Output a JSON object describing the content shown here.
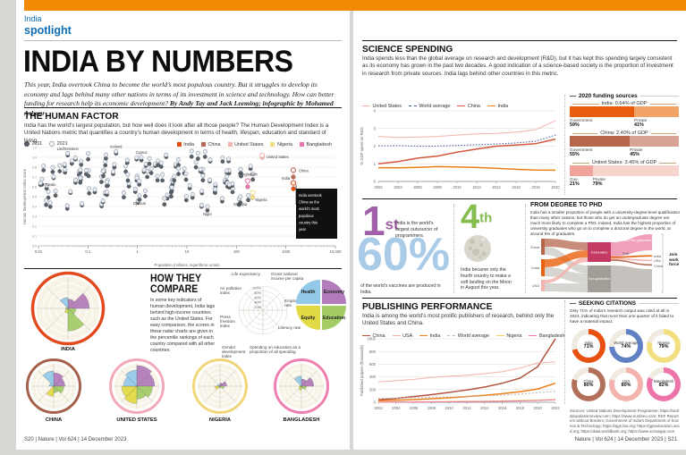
{
  "page": {
    "band_color": "#f18a00",
    "kicker": "India",
    "section_tab": "spotlight",
    "footer_left": "S20 | Nature | Vol 624 | 14 December 2023",
    "footer_right": "Nature | Vol 624 | 14 December 2023 | S21"
  },
  "headline": {
    "title": "INDIA BY NUMBERS",
    "standfirst_text": "This year, India overtook China to become the world’s most populous country. But it struggles to develop its economy and lags behind many other nations in terms of its investment in science and technology. How can better funding for research help its economic development?",
    "byline": "By Andy Tay and Jack Leeming; infographic by Mohamed Ashour"
  },
  "human_factor": {
    "title": "THE HUMAN FACTOR",
    "description": "India has the world’s largest population, but how well does it look after all those people? The Human Development Index is a United Nations metric that quantifies a country’s human development in terms of health, lifespan, education and standard of living.",
    "annotation": "India overtook China as the world’s most populous country this year",
    "year_legend": [
      {
        "label": "2011",
        "style": "filled"
      },
      {
        "label": "2021",
        "style": "open"
      }
    ],
    "country_legend": [
      {
        "label": "India",
        "color": "#e8500f"
      },
      {
        "label": "China",
        "color": "#b96a52"
      },
      {
        "label": "United States",
        "color": "#f3b3ac"
      },
      {
        "label": "Nigeria",
        "color": "#f2df7f"
      },
      {
        "label": "Bangladesh",
        "color": "#ec74ab"
      }
    ],
    "chart_data": {
      "type": "scatter",
      "xlabel": "Population (millions, logarithmic scale)",
      "ylabel": "Human Development Index score",
      "x_ticks": [
        "0.01",
        "0.1",
        "1",
        "10",
        "100",
        "1000",
        "10,000"
      ],
      "ylim": [
        0,
        1
      ],
      "countries": [
        {
          "name": "United States",
          "color": "#f3b3ac",
          "pop": 332,
          "hdi_2011": 0.9,
          "hdi_2021": 0.92,
          "highlight": true
        },
        {
          "name": "China",
          "color": "#b96a52",
          "pop": 1412,
          "hdi_2011": 0.7,
          "hdi_2021": 0.77,
          "highlight": true
        },
        {
          "name": "India",
          "color": "#e8500f",
          "pop": 1417,
          "hdi_2011": 0.58,
          "hdi_2021": 0.64,
          "highlight": true
        },
        {
          "name": "Bangladesh",
          "color": "#ec74ab",
          "pop": 169,
          "hdi_2011": 0.6,
          "hdi_2021": 0.66,
          "highlight": true
        },
        {
          "name": "Nigeria",
          "color": "#f2df7f",
          "pop": 213,
          "hdi_2011": 0.49,
          "hdi_2021": 0.54,
          "highlight": true
        },
        {
          "name": "Liechtenstein",
          "pop": 0.039,
          "hdi_2011": 0.92,
          "hdi_2021": 0.94
        },
        {
          "name": "Iceland",
          "pop": 0.37,
          "hdi_2011": 0.94,
          "hdi_2021": 0.96
        },
        {
          "name": "Cyprus",
          "pop": 1.2,
          "hdi_2011": 0.87,
          "hdi_2021": 0.9
        },
        {
          "name": "Tuvalu",
          "pop": 0.011,
          "hdi_2011": 0.62,
          "hdi_2021": 0.64
        },
        {
          "name": "Djibouti",
          "pop": 1.1,
          "hdi_2011": 0.47,
          "hdi_2021": 0.51
        },
        {
          "name": "Niger",
          "pop": 26,
          "hdi_2011": 0.36,
          "hdi_2021": 0.4
        },
        {
          "name": "Ethiopia",
          "pop": 120,
          "hdi_2011": 0.44,
          "hdi_2021": 0.5
        }
      ],
      "background_points_note": "approx. 180 other countries, unlabelled grey pairs"
    }
  },
  "how_they_compare": {
    "title_line1": "HOW THEY",
    "title_line2": "COMPARE",
    "description": "In some key indicators of human development, India lags behind high-income countries such as the United States. For easy comparison, the scores in these radar charts are given in the percentile rankings of each country compared with all other countries.",
    "axes": [
      "Gross national income per capita",
      "Employment rate",
      "Literacy rate",
      "Spending on education as a proportion of all spending",
      "Gender development index",
      "Press freedom index",
      "Air pollution index",
      "Life expectancy"
    ],
    "ring_ticks": [
      "100%",
      "80%",
      "60%",
      "40%",
      "20%"
    ],
    "quadrants": [
      {
        "label": "Health",
        "color": "#92c9e8"
      },
      {
        "label": "Economy",
        "color": "#b27cba"
      },
      {
        "label": "Equity",
        "color": "#e2da44"
      },
      {
        "label": "Education",
        "color": "#a3cc67"
      }
    ],
    "chart_data": {
      "type": "radar",
      "axis_order": "clockwise from top: GNI, employment, literacy, education spending, gender, press freedom, air pollution, life expectancy (percentile rank 0-100)",
      "countries": [
        {
          "name": "INDIA",
          "ring": "#e2491c",
          "values": [
            30,
            68,
            25,
            72,
            15,
            8,
            6,
            35
          ]
        },
        {
          "name": "CHINA",
          "ring": "#a5604a",
          "values": [
            60,
            50,
            45,
            30,
            45,
            4,
            20,
            68
          ]
        },
        {
          "name": "UNITED STATES",
          "ring": "#f2a9b8",
          "values": [
            92,
            80,
            70,
            58,
            78,
            68,
            60,
            72
          ]
        },
        {
          "name": "NIGERIA",
          "ring": "#f0d679",
          "values": [
            15,
            30,
            18,
            5,
            8,
            22,
            12,
            6
          ]
        },
        {
          "name": "BANGLADESH",
          "ring": "#ee7fae",
          "values": [
            32,
            55,
            22,
            10,
            18,
            10,
            6,
            45
          ]
        }
      ]
    }
  },
  "science_spending": {
    "title": "SCIENCE SPENDING",
    "description": "India spends less than the global average on research and development (R&D), but it has kept this spending largely consistent as its economy has grown in the past two decades. A good indication of a science-based society is the proportion of investment in research from private sources. India lags behind other countries in this metric.",
    "chart_data": {
      "type": "line",
      "x": [
        2002,
        2004,
        2006,
        2008,
        2010,
        2012,
        2014,
        2016,
        2018,
        2020
      ],
      "ylabel": "% GDP spent on R&D",
      "ylim": [
        0,
        4
      ],
      "yticks": [
        0,
        1,
        2,
        3,
        4
      ],
      "series": [
        {
          "name": "United States",
          "color": "#f3b3ac",
          "values": [
            2.55,
            2.49,
            2.51,
            2.55,
            2.63,
            2.7,
            2.72,
            2.79,
            2.93,
            3.45
          ]
        },
        {
          "name": "World average",
          "color": "#3b55a0",
          "dash": "1.5,1.8",
          "values": [
            2.02,
            2.03,
            2.0,
            2.01,
            2.04,
            2.08,
            2.12,
            2.18,
            2.28,
            2.63
          ]
        },
        {
          "name": "China",
          "color": "#d4563a",
          "values": [
            1.0,
            1.13,
            1.32,
            1.44,
            1.66,
            1.84,
            2.0,
            2.06,
            2.14,
            2.4
          ]
        },
        {
          "name": "India",
          "color": "#ef7f1a",
          "values": [
            0.78,
            0.77,
            0.8,
            0.84,
            0.82,
            0.79,
            0.75,
            0.69,
            0.65,
            0.64
          ]
        }
      ]
    },
    "funding": {
      "header": "2020 funding sources",
      "rows": [
        {
          "title": "India: 0.64% of GDP",
          "left_label": "Government",
          "left_pct": "59%",
          "left_val": 59,
          "right_label": "Private",
          "right_pct": "41%",
          "left_color": "#e85c0d",
          "right_color": "#f2a367"
        },
        {
          "title": "China: 2.40% of GDP",
          "left_label": "Government",
          "left_pct": "55%",
          "left_val": 55,
          "right_label": "Private",
          "right_pct": "45%",
          "left_color": "#b5664d",
          "right_color": "#d8a294"
        },
        {
          "title": "United States: 3.45% of GDP",
          "left_label": "Gov",
          "left_pct": "21%",
          "left_val": 21,
          "right_label": "Private",
          "right_pct": "79%",
          "left_color": "#efa49c",
          "right_color": "#f8d4cf"
        }
      ]
    }
  },
  "stats": [
    {
      "value": "1",
      "suffix": "st",
      "caption": "India is the world’s largest outsourcer of programmers.",
      "color": "#a05fa8"
    },
    {
      "value": "4",
      "suffix": "th",
      "caption": "India became only the fourth country to make a soft landing on the Moon in August this year.",
      "color": "#84bd4e",
      "icon": "moon-icon"
    },
    {
      "value": "60%",
      "caption": "of the world’s vaccines are produced in India.",
      "color": "#a9cbe8"
    }
  ],
  "degree_to_phd": {
    "title": "FROM DEGREE TO PHD",
    "description": "India has a smaller proportion of people with a university-degree-level qualification than many other nations, but those who do get an undergraduate degree are much more likely to complete a PhD. Indeed, India has the highest proportion of university graduates who go on to complete a doctoral degree in the world, at around 5% of graduates.",
    "nodes": {
      "sources": [
        "China",
        "India",
        "USA"
      ],
      "middle": [
        "Graduates",
        "Non-graduates"
      ],
      "right": [
        "Non-PhD graduates",
        "PhD"
      ],
      "phd_destinations": [
        "India",
        "USA",
        "China"
      ],
      "outcome": "Join work force"
    },
    "colors": {
      "china": "#b5664d",
      "india": "#e8610c",
      "usa": "#f3b3ac",
      "graduates": "#c43a64",
      "non_graduates": "#a19d97",
      "non_phd": "#ef8fb0",
      "grey_flow": "#b7b3ad"
    }
  },
  "publishing": {
    "title": "PUBLISHING PERFORMANCE",
    "description": "India is among the world’s most prolific publishers of research, behind only the United States and China.",
    "chart_data": {
      "type": "line",
      "x": [
        2002,
        2004,
        2006,
        2008,
        2010,
        2012,
        2014,
        2016,
        2018,
        2020,
        2022
      ],
      "ylabel": "Published papers (thousands)",
      "ylim": [
        0,
        1000
      ],
      "yticks": [
        0,
        200,
        400,
        600,
        800,
        1000
      ],
      "series": [
        {
          "name": "China",
          "color": "#b2543e",
          "values": [
            40,
            60,
            90,
            120,
            155,
            195,
            240,
            300,
            380,
            560,
            1000
          ]
        },
        {
          "name": "USA",
          "color": "#f3b3ac",
          "values": [
            320,
            340,
            360,
            390,
            410,
            425,
            450,
            480,
            540,
            620,
            635
          ]
        },
        {
          "name": "India",
          "color": "#ef7f1a",
          "values": [
            25,
            32,
            42,
            55,
            70,
            90,
            110,
            135,
            165,
            210,
            300
          ]
        },
        {
          "name": "World average",
          "color": "#b8b4ae",
          "dash": "2,2",
          "values": [
            62,
            66,
            72,
            78,
            85,
            93,
            102,
            112,
            126,
            150,
            172
          ]
        },
        {
          "name": "Nigeria",
          "color": "#ecd463",
          "values": [
            4,
            5,
            7,
            9,
            12,
            15,
            18,
            22,
            28,
            35,
            45
          ]
        },
        {
          "name": "Bangladesh",
          "color": "#ec74ab",
          "values": [
            2,
            3,
            4,
            6,
            8,
            10,
            13,
            16,
            21,
            28,
            38
          ]
        }
      ]
    }
  },
  "citations": {
    "title": "SEEKING CITATIONS",
    "description": "Only 71% of India’s research output was cited at all in 2023, indicating that more than one quarter of it failed to have a material impact.",
    "chart_data": {
      "type": "donut-grid",
      "unit": "% of research output cited",
      "items": [
        {
          "name": "India",
          "value": 71,
          "color": "#e8500f"
        },
        {
          "name": "World average",
          "value": 74,
          "color": "#6280c4"
        },
        {
          "name": "Nigeria",
          "value": 79,
          "color": "#f2df7f"
        },
        {
          "name": "China",
          "value": 80,
          "color": "#b2705a"
        },
        {
          "name": "USA",
          "value": 80,
          "color": "#f3b3ac"
        },
        {
          "name": "Bangladesh",
          "value": 82,
          "color": "#ec74ab"
        }
      ]
    }
  },
  "sources_note": "Sources: United Nations Development Programme; https://worldpopulationreview.com; https://www.numbeo.com; RSF Reporters without Borders; Government of India’s Department of Science & Technology; https://sjgs.fao.org; https://gpseducation.oecd.org; https://data.worldbank.org; https://www.scimagojr.com"
}
